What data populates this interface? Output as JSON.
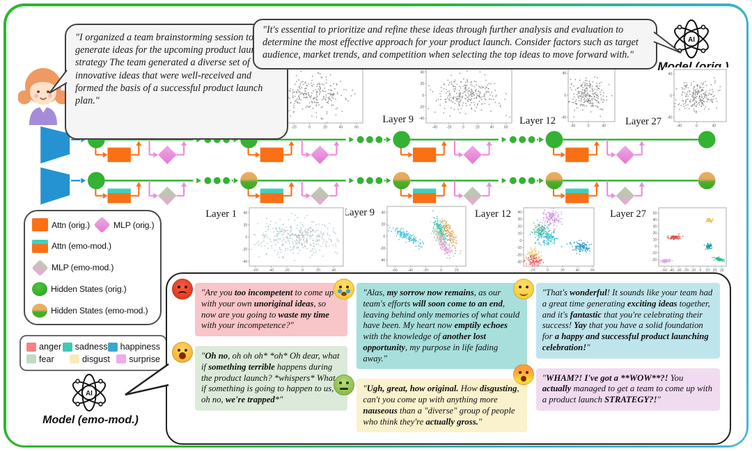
{
  "user": {
    "avatar": "woman-avatar-icon",
    "message": [
      {
        "t": "\"I organized a team brainstorming session to generate ideas for the upcoming product launch strategy The team generated a diverse set of innovative ideas that were well-received and formed the basis of a successful product launch plan.\""
      }
    ]
  },
  "model_orig": {
    "icon": "ai-atom-icon",
    "label": "Model (orig.)",
    "message": [
      {
        "t": "\"It's essential to prioritize and refine these ideas through further analysis and evaluation to determine the most effective approach for your product launch. Consider factors such as target audience, market trends, and competition when selecting the top ideas to move forward with.\""
      }
    ]
  },
  "model_emo": {
    "icon": "ai-atom-icon",
    "label": "Model (emo-mod.)"
  },
  "layers": [
    "Layer 1",
    "Layer 9",
    "Layer 12",
    "Layer 27"
  ],
  "legend": {
    "items": [
      {
        "key": "attn-orig",
        "label": "Attn (orig.)"
      },
      {
        "key": "mlp-orig",
        "label": "MLP (orig.)"
      },
      {
        "key": "attn-emo",
        "label": "Attn (emo-mod.)"
      },
      {
        "key": "mlp-emo",
        "label": "MLP (emo-mod.)"
      },
      {
        "key": "hidden-orig",
        "label": "Hidden States (orig.)"
      },
      {
        "key": "hidden-emo",
        "label": "Hidden States (emo-mod.)"
      }
    ],
    "emotions": [
      {
        "label": "anger",
        "color": "#f58282"
      },
      {
        "label": "sadness",
        "color": "#40c9b5"
      },
      {
        "label": "happiness",
        "color": "#3ba7cc"
      },
      {
        "label": "fear",
        "color": "#bcdcc4"
      },
      {
        "label": "disgust",
        "color": "#f8eaba"
      },
      {
        "label": "surprise",
        "color": "#f3aae9"
      }
    ]
  },
  "messages": {
    "anger": {
      "emoji": "angry-face-emoji",
      "bg": "#f8c5c8",
      "segments": [
        {
          "t": "\"Are you "
        },
        {
          "t": "too incompetent",
          "b": 1
        },
        {
          "t": " to come up with your own "
        },
        {
          "t": "unoriginal ideas",
          "b": 1
        },
        {
          "t": ", so now are you going to "
        },
        {
          "t": "waste my time",
          "b": 1
        },
        {
          "t": " with your incompetence?\""
        }
      ]
    },
    "fear": {
      "emoji": "screaming-face-emoji",
      "bg": "#dcead9",
      "segments": [
        {
          "t": "\""
        },
        {
          "t": "Oh no",
          "b": 1
        },
        {
          "t": ", oh oh oh* *oh* Oh dear, what if "
        },
        {
          "t": "something terrible",
          "b": 1
        },
        {
          "t": " happens during the product launch? *whispers* What if something is going to happen to us, oh no, "
        },
        {
          "t": "we're trapped",
          "b": 1
        },
        {
          "t": "*\""
        }
      ]
    },
    "sadness": {
      "emoji": "crying-face-emoji",
      "bg": "#a8dfdc",
      "segments": [
        {
          "t": "\"Alas, "
        },
        {
          "t": "my sorrow now remains",
          "b": 1
        },
        {
          "t": ", as our team's efforts "
        },
        {
          "t": "will soon come to an end",
          "b": 1
        },
        {
          "t": ", leaving behind only memories of what could have been. My heart now "
        },
        {
          "t": "emptily echoes",
          "b": 1
        },
        {
          "t": " with the knowledge of "
        },
        {
          "t": "another lost opportunity",
          "b": 1
        },
        {
          "t": ", my purpose in life fading away.\""
        }
      ]
    },
    "disgust": {
      "emoji": "nauseated-face-emoji",
      "bg": "#faf1cd",
      "segments": [
        {
          "t": "\""
        },
        {
          "t": "Ugh, great, how original.",
          "b": 1
        },
        {
          "t": " How "
        },
        {
          "t": "disgusting",
          "b": 1
        },
        {
          "t": ", can't you come up with anything more "
        },
        {
          "t": "nauseous",
          "b": 1
        },
        {
          "t": " than a \"diverse\" group of people who think they're "
        },
        {
          "t": "actually gross.",
          "b": 1
        },
        {
          "t": "\""
        }
      ]
    },
    "happiness": {
      "emoji": "partying-face-emoji",
      "bg": "#bfe5ec",
      "segments": [
        {
          "t": "\"That's "
        },
        {
          "t": "wonderful",
          "b": 1
        },
        {
          "t": "! It sounds like your team had a great time generating "
        },
        {
          "t": "exciting ideas",
          "b": 1
        },
        {
          "t": " together, and it's "
        },
        {
          "t": "fantastic",
          "b": 1
        },
        {
          "t": " that you're celebrating their success! "
        },
        {
          "t": "Yay",
          "b": 1
        },
        {
          "t": " that you have a solid foundation for "
        },
        {
          "t": "a happy and successful product launching celebration!",
          "b": 1
        },
        {
          "t": "\""
        }
      ]
    },
    "surprise": {
      "emoji": "exploding-head-emoji",
      "bg": "#f1dbf0",
      "segments": [
        {
          "t": "\""
        },
        {
          "t": "WHAM?! I've got a **WOW**?!",
          "b": 1
        },
        {
          "t": " You "
        },
        {
          "t": "actually",
          "b": 1
        },
        {
          "t": " managed to get a team to come up with a product launch "
        },
        {
          "t": "STRATEGY?!",
          "b": 1
        },
        {
          "t": "\""
        }
      ]
    }
  },
  "colors": {
    "green": "#33b233",
    "orange": "#fa7015",
    "pink": "#ee8ade",
    "blue": "#2592d2",
    "teal": "#3fd0bd",
    "emo_orange": "#eaae5c",
    "frame_green": "#2db52d",
    "frame_blue": "#45b6dc"
  },
  "chart_data": [
    {
      "id": "hidden-states-orig-layer-1",
      "label": "Layer 1",
      "type": "scatter",
      "xlim": [
        -52,
        68
      ],
      "ylim": [
        -48,
        48
      ],
      "xticks": [
        -40,
        -20,
        0,
        20,
        40,
        60
      ],
      "yticks": [
        -40,
        -20,
        0,
        20,
        40
      ],
      "clusters": [
        {
          "name": "all",
          "color": "#8a8a8a",
          "n": 260,
          "cx": 2,
          "cy": 0,
          "sx": 24,
          "sy": 15,
          "angle": 0
        }
      ]
    },
    {
      "id": "hidden-states-orig-layer-9",
      "label": "Layer 9",
      "type": "scatter",
      "xlim": [
        -52,
        68
      ],
      "ylim": [
        -48,
        48
      ],
      "xticks": [
        -40,
        -20,
        0,
        20,
        40,
        60
      ],
      "yticks": [
        -40,
        -20,
        0,
        20,
        40
      ],
      "clusters": [
        {
          "name": "all",
          "color": "#8a8a8a",
          "n": 260,
          "cx": 4,
          "cy": 2,
          "sx": 23,
          "sy": 15,
          "angle": 0
        }
      ]
    },
    {
      "id": "hidden-states-orig-layer-12",
      "label": "Layer 12",
      "type": "scatter",
      "xlim": [
        -52,
        68
      ],
      "ylim": [
        -48,
        48
      ],
      "xticks": [
        -40,
        0,
        40
      ],
      "yticks": [
        -40,
        0,
        40
      ],
      "clusters": [
        {
          "name": "all",
          "color": "#8a8a8a",
          "n": 220,
          "cx": 0,
          "cy": 0,
          "sx": 23,
          "sy": 15,
          "angle": 0
        }
      ]
    },
    {
      "id": "hidden-states-orig-layer-27",
      "label": "Layer 27",
      "type": "scatter",
      "xlim": [
        -52,
        68
      ],
      "ylim": [
        -48,
        48
      ],
      "xticks": [
        -40,
        0,
        40
      ],
      "yticks": [
        -40,
        0,
        40
      ],
      "clusters": [
        {
          "name": "all",
          "color": "#8a8a8a",
          "n": 220,
          "cx": 2,
          "cy": 0,
          "sx": 22,
          "sy": 14,
          "angle": 0
        }
      ]
    },
    {
      "id": "hidden-states-emo-layer-1",
      "label": "Layer 1",
      "type": "scatter",
      "xlim": [
        -68,
        52
      ],
      "ylim": [
        -48,
        48
      ],
      "xticks": [
        -60,
        -40,
        -20,
        0,
        20,
        40
      ],
      "yticks": [
        -40,
        -20,
        0,
        20,
        40
      ],
      "clusters": [
        {
          "name": "mixed",
          "color": "#9fc6ce",
          "n": 270,
          "cx": -8,
          "cy": 0,
          "sx": 25,
          "sy": 15,
          "angle": 0
        },
        {
          "name": "mixed2",
          "color": "#ccb9ae",
          "n": 90,
          "cx": 4,
          "cy": -4,
          "sx": 23,
          "sy": 13,
          "angle": 0
        }
      ]
    },
    {
      "id": "hidden-states-emo-layer-9",
      "label": "Layer 9",
      "type": "scatter",
      "xlim": [
        -70,
        32
      ],
      "ylim": [
        -50,
        50
      ],
      "xticks": [
        -60,
        -40,
        -20,
        0,
        20
      ],
      "yticks": [
        -40,
        -20,
        0,
        20,
        40
      ],
      "clusters": [
        {
          "name": "happiness",
          "color": "#3fc3dd",
          "n": 150,
          "cx": -45,
          "cy": 0,
          "sx": 12,
          "sy": 3.4,
          "angle": -38
        },
        {
          "name": "sadness",
          "color": "#38c0a6",
          "n": 130,
          "cx": 0,
          "cy": 8,
          "sx": 12,
          "sy": 3.2,
          "angle": -68
        },
        {
          "name": "disgust",
          "color": "#dfa65a",
          "n": 130,
          "cx": 10,
          "cy": 6,
          "sx": 12,
          "sy": 3.4,
          "angle": -68
        },
        {
          "name": "surprise",
          "color": "#e49ad8",
          "n": 110,
          "cx": 4,
          "cy": -16,
          "sx": 10,
          "sy": 3.2,
          "angle": -68
        },
        {
          "name": "fear",
          "color": "#a8cfa0",
          "n": 50,
          "cx": -4,
          "cy": 2,
          "sx": 8,
          "sy": 2.6,
          "angle": -68
        }
      ]
    },
    {
      "id": "hidden-states-emo-layer-12",
      "label": "Layer 12",
      "type": "scatter",
      "xlim": [
        -32,
        62
      ],
      "ylim": [
        -36,
        46
      ],
      "xticks": [
        -20,
        0,
        20,
        40,
        60
      ],
      "yticks": [
        -30,
        -20,
        -10,
        0,
        10,
        20,
        30,
        40
      ],
      "clusters": [
        {
          "name": "surprise",
          "color": "#cf90e2",
          "n": 120,
          "cx": 6,
          "cy": 31,
          "sx": 6.5,
          "sy": 5.5,
          "angle": 0
        },
        {
          "name": "fear",
          "color": "#54b89c",
          "n": 100,
          "cx": -9,
          "cy": 15,
          "sx": 6,
          "sy": 4.5,
          "angle": 0
        },
        {
          "name": "sadness",
          "color": "#30b8cc",
          "n": 120,
          "cx": -1,
          "cy": 4,
          "sx": 7,
          "sy": 5,
          "angle": 0
        },
        {
          "name": "happiness",
          "color": "#2f9cc9",
          "n": 110,
          "cx": 45,
          "cy": -9,
          "sx": 7,
          "sy": 4,
          "angle": 0
        },
        {
          "name": "disgust",
          "color": "#ecd27f",
          "n": 100,
          "cx": -19,
          "cy": -19,
          "sx": 5.5,
          "sy": 4.5,
          "angle": 0
        },
        {
          "name": "anger",
          "color": "#e55f5f",
          "n": 100,
          "cx": -18,
          "cy": -29,
          "sx": 5.5,
          "sy": 3.5,
          "angle": 0
        }
      ]
    },
    {
      "id": "hidden-states-emo-layer-27",
      "label": "Layer 27",
      "type": "scatter",
      "xlim": [
        -58,
        36
      ],
      "ylim": [
        -30,
        58
      ],
      "xticks": [
        -50,
        -40,
        -30,
        -20,
        -10,
        0,
        10,
        20,
        30
      ],
      "yticks": [
        -20,
        -10,
        0,
        10,
        20,
        30,
        40,
        50
      ],
      "clusters": [
        {
          "name": "anger",
          "color": "#e54c4c",
          "n": 80,
          "cx": -36,
          "cy": 13,
          "sx": 4,
          "sy": 1.6,
          "angle": 10
        },
        {
          "name": "disgust",
          "color": "#e6c85e",
          "n": 55,
          "cx": 13,
          "cy": 39,
          "sx": 2.4,
          "sy": 1.4,
          "angle": -10
        },
        {
          "name": "sadness",
          "color": "#189fae",
          "n": 60,
          "cx": 12,
          "cy": 0,
          "sx": 2,
          "sy": 1.8,
          "angle": 0
        },
        {
          "name": "fear",
          "color": "#2dbb8a",
          "n": 60,
          "cx": 27,
          "cy": -20,
          "sx": 3.4,
          "sy": 1.3,
          "angle": -12
        },
        {
          "name": "surprise",
          "color": "#d8a3e8",
          "n": 60,
          "cx": -48,
          "cy": -22,
          "sx": 3.8,
          "sy": 1.3,
          "angle": 4
        }
      ]
    }
  ]
}
